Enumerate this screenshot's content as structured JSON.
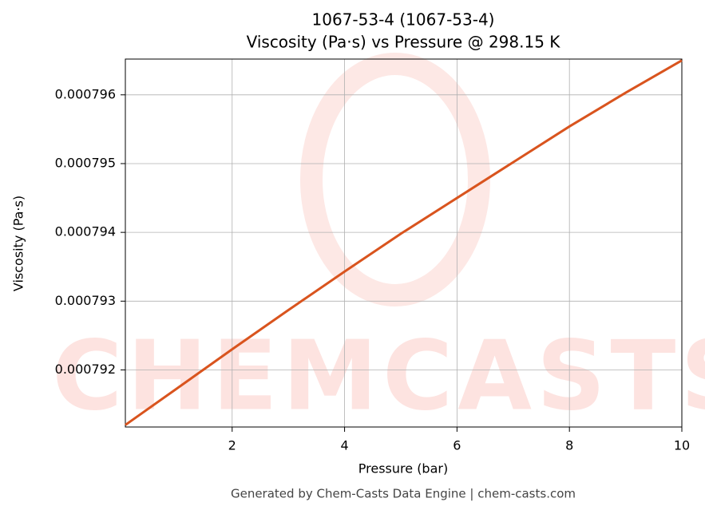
{
  "chart_data": {
    "type": "line",
    "title": "1067-53-4 (1067-53-4)",
    "subtitle": "Viscosity (Pa·s) vs Pressure @ 298.15 K",
    "x_label": "Pressure (bar)",
    "y_label": "Viscosity (Pa·s)",
    "watermark": "CHEMCASTS",
    "footer": "Generated by Chem-Casts Data Engine | chem-casts.com",
    "x": [
      0.1,
      1,
      2,
      3,
      4,
      5,
      6,
      7,
      8,
      9,
      10
    ],
    "series": [
      {
        "name": "Viscosity",
        "color": "#d9541e",
        "values": [
          0.0007912,
          0.00079172,
          0.0007923,
          0.00079287,
          0.00079343,
          0.00079398,
          0.0007945,
          0.00079502,
          0.00079554,
          0.00079603,
          0.0007965
        ]
      }
    ],
    "xlim": [
      0.1,
      10
    ],
    "xticks": [
      2,
      4,
      6,
      8,
      10
    ],
    "ylim": [
      0.00079117,
      0.00079652
    ],
    "yticks": [
      0.000792,
      0.000793,
      0.000794,
      0.000795,
      0.000796
    ],
    "grid": true
  }
}
